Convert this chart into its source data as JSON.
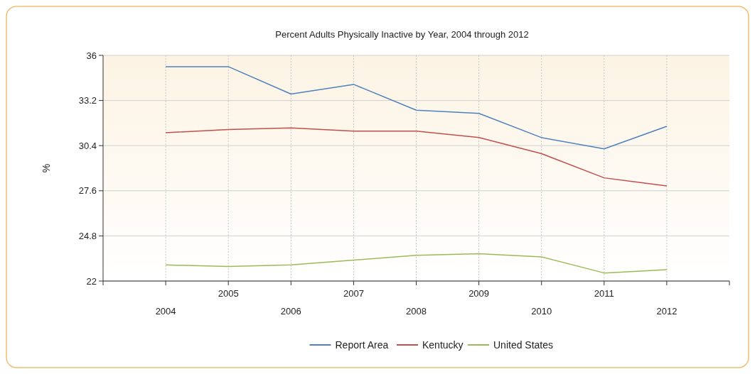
{
  "chart_data": {
    "type": "line",
    "title": "Percent Adults Physically Inactive by Year, 2004 through 2012",
    "ylabel": "%",
    "categories": [
      "2004",
      "2005",
      "2006",
      "2007",
      "2008",
      "2009",
      "2010",
      "2011",
      "2012"
    ],
    "series": [
      {
        "name": "Report Area",
        "color": "#4f81bd",
        "values": [
          35.3,
          35.3,
          33.6,
          34.2,
          32.6,
          32.4,
          30.9,
          30.2,
          31.6
        ]
      },
      {
        "name": "Kentucky",
        "color": "#c0504d",
        "values": [
          31.2,
          31.4,
          31.5,
          31.3,
          31.3,
          30.9,
          29.9,
          28.4,
          27.9
        ]
      },
      {
        "name": "United States",
        "color": "#9bbb59",
        "values": [
          23.0,
          22.9,
          23.0,
          23.3,
          23.6,
          23.7,
          23.5,
          22.5,
          22.7
        ]
      }
    ],
    "ylim": [
      22,
      36
    ],
    "yticks": [
      22,
      24.8,
      27.6,
      30.4,
      33.2,
      36
    ],
    "grid": true,
    "legend": "bottom",
    "marker": "none",
    "line_style": "solid"
  }
}
